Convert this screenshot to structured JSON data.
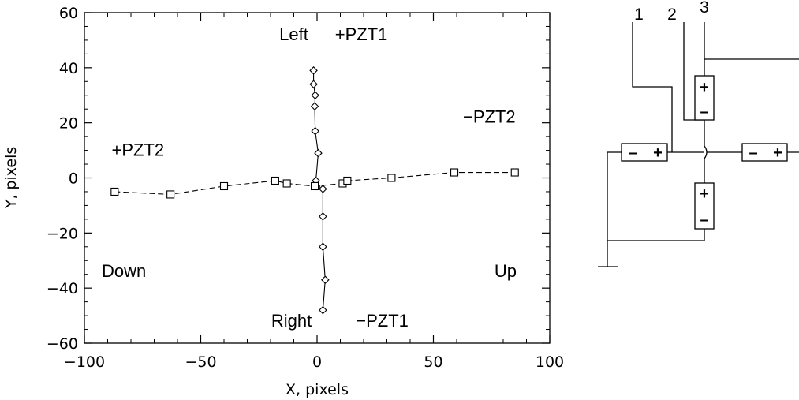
{
  "chart_data": {
    "type": "scatter",
    "title": "",
    "xlabel": "X, pixels",
    "ylabel": "Y, pixels",
    "xlim": [
      -100,
      100
    ],
    "ylim": [
      -60,
      60
    ],
    "xticks": [
      -100,
      -50,
      0,
      50,
      100
    ],
    "yticks": [
      -60,
      -40,
      -20,
      0,
      20,
      40,
      60
    ],
    "xtick_labels": [
      "−100",
      "−50",
      "0",
      "50",
      "100"
    ],
    "ytick_labels": [
      "−60",
      "−40",
      "−20",
      "0",
      "20",
      "40",
      "60"
    ],
    "grid": false,
    "series": [
      {
        "marker": "diamond",
        "line": "solid",
        "points": [
          [
            -1.5,
            39
          ],
          [
            -1.5,
            34
          ],
          [
            -0.8,
            30
          ],
          [
            -1,
            26
          ],
          [
            -0.8,
            17
          ],
          [
            0.5,
            9
          ],
          [
            -0.5,
            -1
          ],
          [
            -0.3,
            -3
          ],
          [
            2.5,
            -4
          ],
          [
            2.5,
            -14
          ],
          [
            2.5,
            -25
          ],
          [
            3.5,
            -37
          ],
          [
            2.5,
            -48
          ]
        ]
      },
      {
        "marker": "square",
        "line": "dashed",
        "points": [
          [
            -87,
            -5
          ],
          [
            -63,
            -6
          ],
          [
            -40,
            -3
          ],
          [
            -18,
            -1
          ],
          [
            -13,
            -2
          ],
          [
            -1,
            -3
          ],
          [
            11,
            -2
          ],
          [
            13,
            -1
          ],
          [
            32,
            0
          ],
          [
            59,
            2
          ],
          [
            85,
            2
          ]
        ]
      }
    ],
    "annotations": [
      {
        "text": "Left",
        "x": -10,
        "y": 50
      },
      {
        "text": "+PZT1",
        "x": 19,
        "y": 50
      },
      {
        "text": "+PZT2",
        "x": -77,
        "y": 8
      },
      {
        "text": "−PZT2",
        "x": 74,
        "y": 20
      },
      {
        "text": "Down",
        "x": -83,
        "y": -36
      },
      {
        "text": "Up",
        "x": 81,
        "y": -36
      },
      {
        "text": "Right",
        "x": -11,
        "y": -54
      },
      {
        "text": "−PZT1",
        "x": 28,
        "y": -54
      }
    ]
  },
  "diagram": {
    "wire_labels": [
      "1",
      "2",
      "3"
    ],
    "plus_sign": "+",
    "minus_sign": "–"
  }
}
